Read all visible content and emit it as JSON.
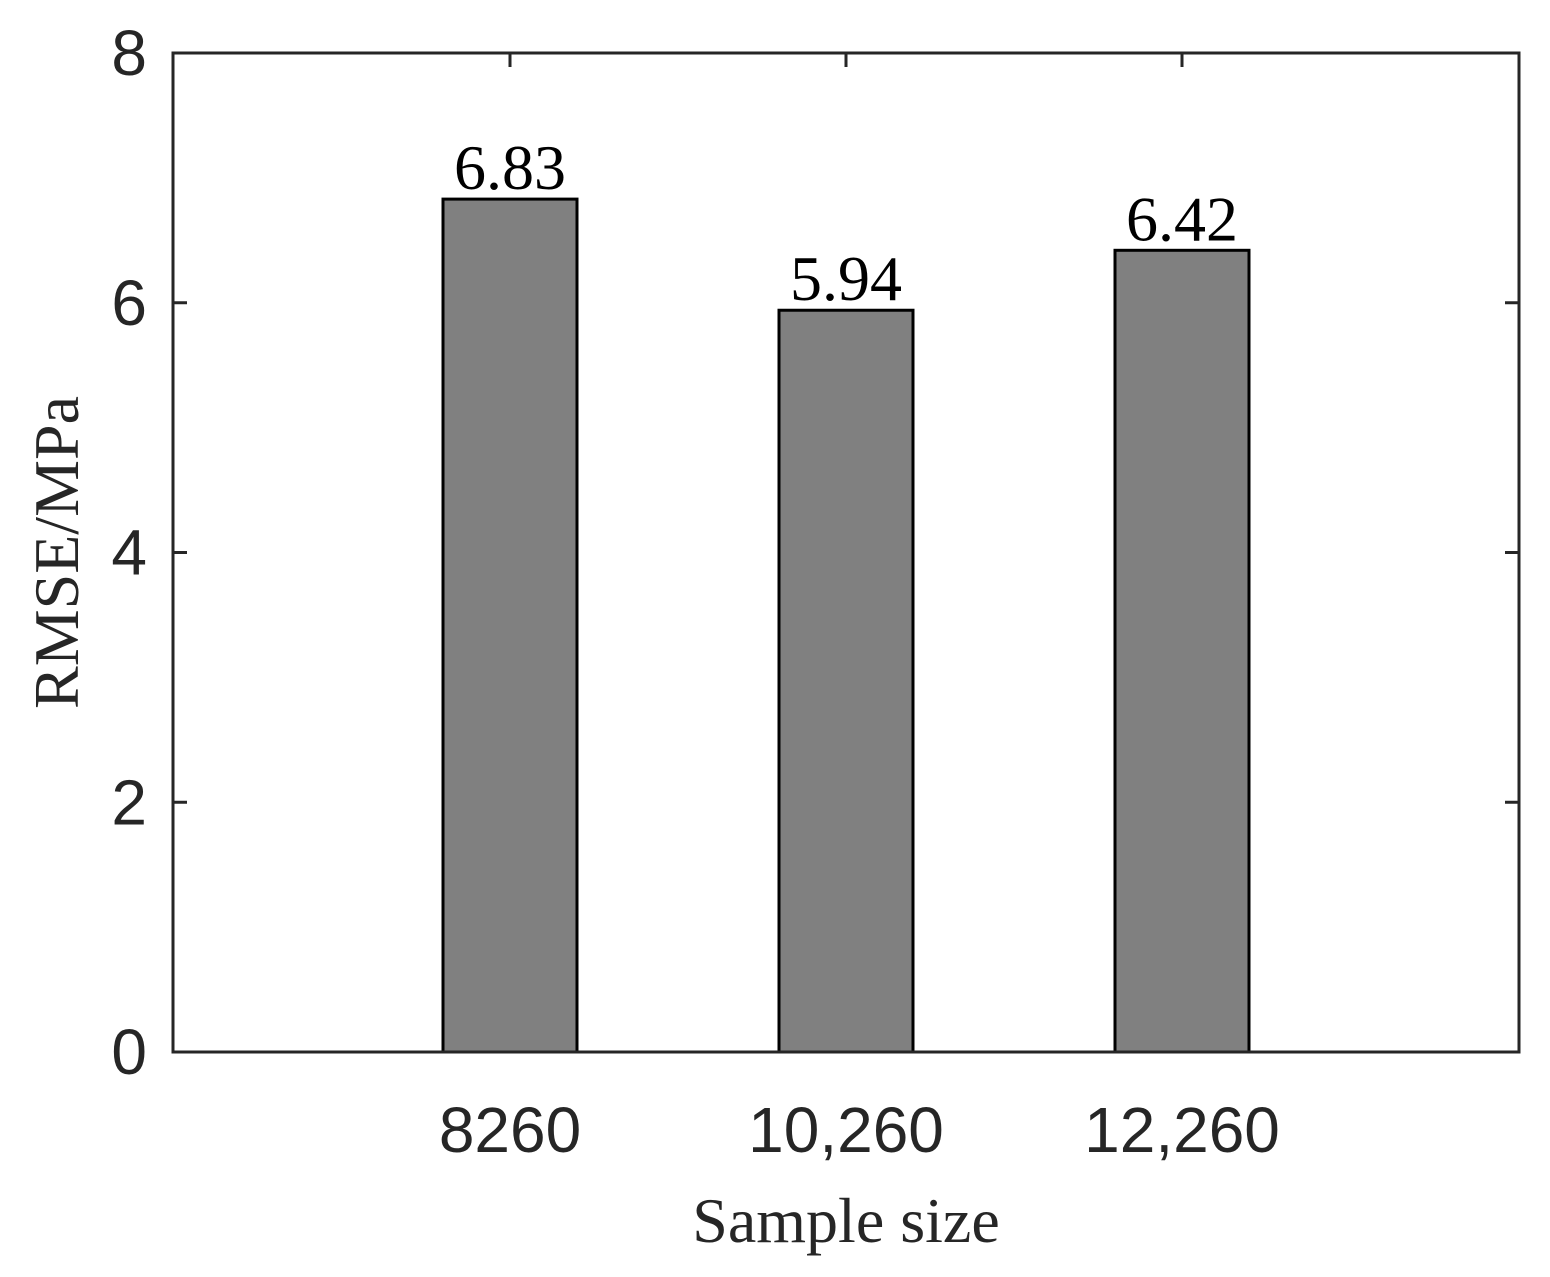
{
  "chart_data": {
    "type": "bar",
    "categories": [
      "8260",
      "10,260",
      "12,260"
    ],
    "values": [
      6.83,
      5.94,
      6.42
    ],
    "data_labels": [
      "6.83",
      "5.94",
      "6.42"
    ],
    "xlabel": "Sample size",
    "ylabel": "RMSE/MPa",
    "ylim": [
      0,
      8
    ],
    "yticks": [
      0,
      2,
      4,
      6,
      8
    ],
    "ytick_labels": [
      "0",
      "2",
      "4",
      "6",
      "8"
    ],
    "grid": false,
    "box": true,
    "colors": {
      "bar_fill": "#808080",
      "bar_edge": "#000000",
      "axis": "#262626"
    }
  }
}
